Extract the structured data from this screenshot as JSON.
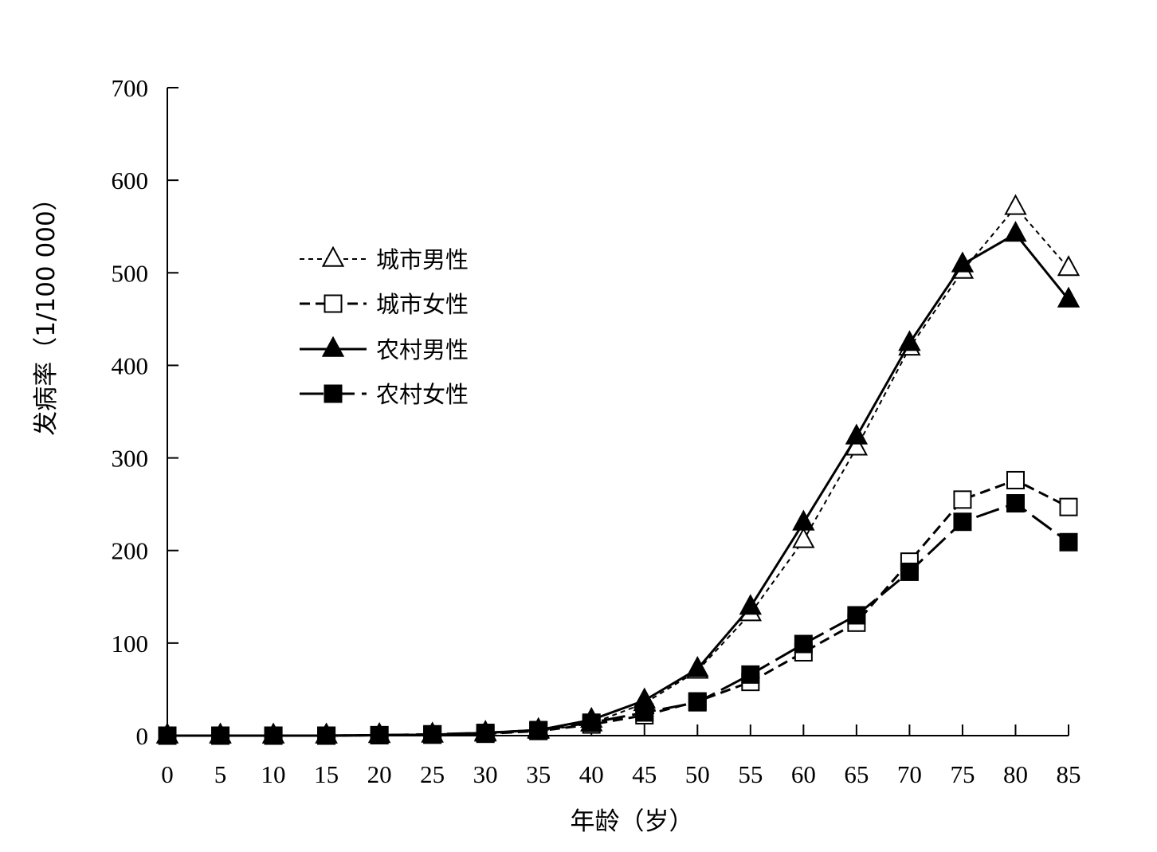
{
  "chart_data": {
    "type": "line",
    "title": "",
    "xlabel": "年龄（岁）",
    "ylabel": "发病率（1/100 000）",
    "xlim": [
      0,
      85
    ],
    "ylim": [
      0,
      700
    ],
    "x_ticks": [
      "0",
      "5",
      "10",
      "15",
      "20",
      "25",
      "30",
      "35",
      "40",
      "45",
      "50",
      "55",
      "60",
      "65",
      "70",
      "75",
      "80",
      "85"
    ],
    "y_ticks": [
      "0",
      "100",
      "200",
      "300",
      "400",
      "500",
      "600",
      "700"
    ],
    "grid": false,
    "legend_position": "upper-left",
    "x": [
      0,
      5,
      10,
      15,
      20,
      25,
      30,
      35,
      40,
      45,
      50,
      55,
      60,
      65,
      70,
      75,
      80,
      85
    ],
    "series": [
      {
        "name": "城市男性",
        "line": "dotted",
        "marker": "triangle-open",
        "values": [
          0,
          0,
          0,
          0,
          0.5,
          1,
          2,
          5,
          13,
          35,
          70,
          132,
          211,
          311,
          419,
          502,
          571,
          505
        ]
      },
      {
        "name": "城市女性",
        "line": "dashed",
        "marker": "square-open",
        "values": [
          0,
          0,
          0,
          0,
          0.5,
          1,
          2,
          5,
          12,
          22,
          37,
          58,
          90,
          122,
          188,
          255,
          276,
          247
        ]
      },
      {
        "name": "农村男性",
        "line": "solid",
        "marker": "triangle-filled",
        "values": [
          0,
          0,
          0,
          0,
          0.5,
          1,
          3,
          6,
          17,
          38,
          72,
          139,
          230,
          323,
          424,
          509,
          542,
          471
        ]
      },
      {
        "name": "农村女性",
        "line": "longdash",
        "marker": "square-filled",
        "values": [
          0,
          0,
          0,
          0,
          0.5,
          1.5,
          3,
          6,
          14,
          25,
          36,
          66,
          99,
          130,
          177,
          231,
          251,
          209
        ]
      }
    ]
  }
}
